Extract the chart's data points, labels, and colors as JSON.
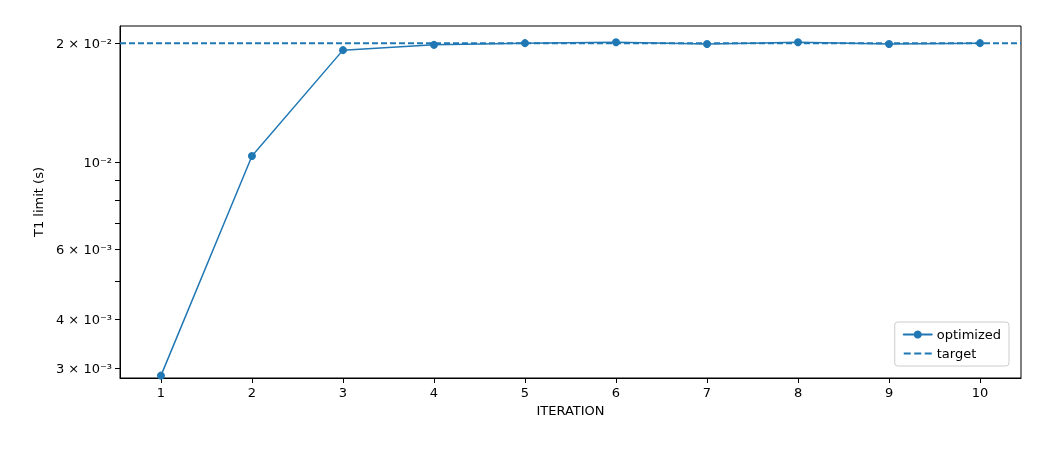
{
  "chart_data": {
    "type": "line",
    "xlabel": "ITERATION",
    "ylabel": "T1 limit (s)",
    "x": [
      1,
      2,
      3,
      4,
      5,
      6,
      7,
      8,
      9,
      10
    ],
    "series": [
      {
        "name": "optimized",
        "color": "#1f77b4",
        "values": [
          0.00288,
          0.01036,
          0.0192,
          0.0198,
          0.02,
          0.0201,
          0.0199,
          0.0201,
          0.0199,
          0.02
        ]
      }
    ],
    "ref_lines": [
      {
        "axis": "y",
        "value": 0.02,
        "label": "target",
        "color": "#1f77b4",
        "line_style": "dashed"
      }
    ],
    "log": "y",
    "marker": "circle",
    "line_style": "solid",
    "legend": "bottom right",
    "grid": false,
    "xlim": [
      0.55,
      10.45
    ],
    "xticks": [
      1,
      2,
      3,
      4,
      5,
      6,
      7,
      8,
      9,
      10
    ],
    "ylim": [
      0.00284,
      0.0221
    ],
    "yticks": [
      {
        "value": 0.003,
        "label": "3 × 10⁻³"
      },
      {
        "value": 0.004,
        "label": "4 × 10⁻³"
      },
      {
        "value": 0.005,
        "label": null
      },
      {
        "value": 0.006,
        "label": "6 × 10⁻³"
      },
      {
        "value": 0.007,
        "label": null
      },
      {
        "value": 0.008,
        "label": null
      },
      {
        "value": 0.009,
        "label": null
      },
      {
        "value": 0.01,
        "label": "10⁻²"
      },
      {
        "value": 0.02,
        "label": "2 × 10⁻²"
      }
    ]
  }
}
